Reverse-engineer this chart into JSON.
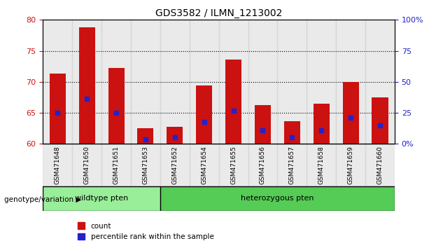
{
  "title": "GDS3582 / ILMN_1213002",
  "samples": [
    "GSM471648",
    "GSM471650",
    "GSM471651",
    "GSM471653",
    "GSM471652",
    "GSM471654",
    "GSM471655",
    "GSM471656",
    "GSM471657",
    "GSM471658",
    "GSM471659",
    "GSM471660"
  ],
  "count_values": [
    71.3,
    78.8,
    72.2,
    62.5,
    62.8,
    69.4,
    73.6,
    66.2,
    63.7,
    66.5,
    70.0,
    67.5
  ],
  "percentile_values": [
    65.0,
    67.3,
    65.0,
    60.7,
    61.0,
    63.5,
    65.3,
    62.2,
    61.0,
    62.2,
    64.2,
    63.0
  ],
  "ymin": 60,
  "ymax": 80,
  "yticks": [
    60,
    65,
    70,
    75,
    80
  ],
  "right_yticks": [
    0,
    25,
    50,
    75,
    100
  ],
  "right_ytick_labels": [
    "0%",
    "25",
    "50",
    "75",
    "100%"
  ],
  "grid_values": [
    65,
    70,
    75
  ],
  "bar_color": "#cc1111",
  "percentile_color": "#2222cc",
  "bar_width": 0.55,
  "wildtype_count": 4,
  "heterozygous_count": 8,
  "wildtype_label": "wildtype pten",
  "heterozygous_label": "heterozygous pten",
  "wildtype_color": "#99ee99",
  "heterozygous_color": "#55cc55",
  "group_label": "genotype/variation",
  "legend_count": "count",
  "legend_percentile": "percentile rank within the sample",
  "right_axis_color": "#2222cc",
  "tick_label_color_left": "#cc1111",
  "sample_bg_color": "#cccccc"
}
